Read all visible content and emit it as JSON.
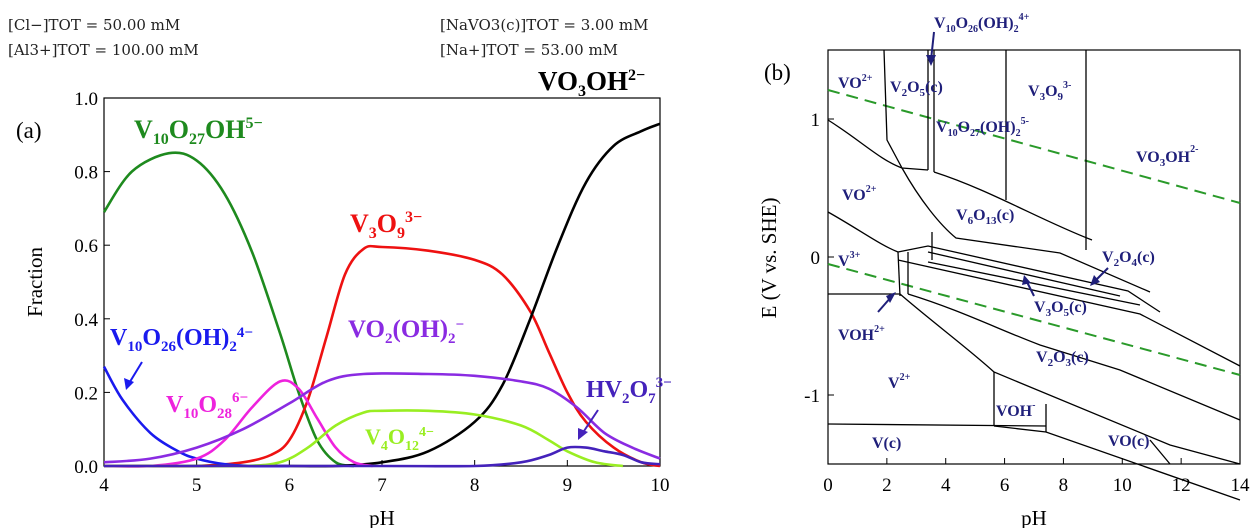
{
  "header": {
    "cl_tot": "[Cl−]TOT =   50.00 mM",
    "al_tot": "[Al3+]TOT =  100.00 mM",
    "navo3_tot": "[NaVO3(c)]TOT =    3.00 mM",
    "na_tot": "[Na+]TOT =   53.00 mM"
  },
  "chart_data": [
    {
      "panel": "(a)",
      "type": "line",
      "xlabel": "pH",
      "ylabel": "Fraction",
      "xlim": [
        4,
        10
      ],
      "ylim": [
        0,
        1.0
      ],
      "x_ticks": [
        "4",
        "5",
        "6",
        "7",
        "8",
        "9",
        "10"
      ],
      "y_ticks": [
        "0.0",
        "0.2",
        "0.4",
        "0.6",
        "0.8",
        "1.0"
      ],
      "series": [
        {
          "name": "V10O27OH5−",
          "color": "#1e8a1e",
          "x": [
            4.0,
            4.3,
            4.7,
            5.0,
            5.3,
            5.6,
            5.9,
            6.1,
            6.3,
            6.5,
            6.7
          ],
          "y": [
            0.69,
            0.8,
            0.85,
            0.83,
            0.74,
            0.58,
            0.36,
            0.2,
            0.07,
            0.01,
            0.0
          ]
        },
        {
          "name": "V3O9 3−",
          "color": "#ee1111",
          "x": [
            4.0,
            4.5,
            5.0,
            5.5,
            5.8,
            6.0,
            6.2,
            6.4,
            6.6,
            6.8,
            7.0,
            7.5,
            8.0,
            8.3,
            8.6,
            8.8,
            9.0,
            9.2,
            9.5,
            9.8,
            10.0
          ],
          "y": [
            0.0,
            0.0,
            0.0,
            0.01,
            0.03,
            0.07,
            0.18,
            0.35,
            0.52,
            0.59,
            0.595,
            0.585,
            0.56,
            0.52,
            0.42,
            0.31,
            0.2,
            0.12,
            0.05,
            0.01,
            0.0
          ]
        },
        {
          "name": "VO3OH2−",
          "color": "#000000",
          "x": [
            4.0,
            5.0,
            6.0,
            6.5,
            7.0,
            7.5,
            8.0,
            8.3,
            8.6,
            8.9,
            9.2,
            9.5,
            9.8,
            10.0
          ],
          "y": [
            0.0,
            0.0,
            0.0,
            0.0,
            0.01,
            0.04,
            0.12,
            0.22,
            0.4,
            0.6,
            0.77,
            0.87,
            0.91,
            0.93
          ]
        },
        {
          "name": "V10O26(OH)2 4−",
          "color": "#1a1aee",
          "x": [
            4.0,
            4.2,
            4.5,
            4.8,
            5.0,
            5.3,
            5.6,
            6.0
          ],
          "y": [
            0.27,
            0.18,
            0.09,
            0.04,
            0.02,
            0.005,
            0.0,
            0.0
          ]
        },
        {
          "name": "V10O28 6−",
          "color": "#ee22dd",
          "x": [
            4.0,
            4.5,
            5.0,
            5.3,
            5.6,
            5.9,
            6.1,
            6.3,
            6.5,
            6.7,
            6.9
          ],
          "y": [
            0.0,
            0.0,
            0.02,
            0.07,
            0.16,
            0.23,
            0.21,
            0.13,
            0.05,
            0.01,
            0.0
          ]
        },
        {
          "name": "VO2(OH)2−",
          "color": "#8a2be2",
          "x": [
            4.0,
            4.5,
            5.0,
            5.5,
            6.0,
            6.4,
            6.8,
            7.5,
            8.0,
            8.5,
            8.8,
            9.1,
            9.4,
            9.7,
            10.0
          ],
          "y": [
            0.01,
            0.02,
            0.05,
            0.1,
            0.17,
            0.23,
            0.25,
            0.25,
            0.245,
            0.23,
            0.21,
            0.16,
            0.09,
            0.05,
            0.02
          ]
        },
        {
          "name": "V4O12 4−",
          "color": "#99ee22",
          "x": [
            4.0,
            5.0,
            5.5,
            5.9,
            6.2,
            6.5,
            6.8,
            7.0,
            7.5,
            8.0,
            8.5,
            8.8,
            9.0,
            9.3,
            9.6
          ],
          "y": [
            0.0,
            0.0,
            0.0,
            0.01,
            0.05,
            0.11,
            0.145,
            0.15,
            0.15,
            0.14,
            0.11,
            0.07,
            0.04,
            0.01,
            0.0
          ]
        },
        {
          "name": "HV2O7 3−",
          "color": "#4422bb",
          "x": [
            4.0,
            7.0,
            8.0,
            8.5,
            8.8,
            9.0,
            9.2,
            9.4,
            9.6,
            9.8,
            10.0
          ],
          "y": [
            0.0,
            0.0,
            0.0,
            0.01,
            0.03,
            0.05,
            0.05,
            0.04,
            0.03,
            0.01,
            0.005
          ]
        }
      ]
    },
    {
      "panel": "(b)",
      "type": "line",
      "xlabel": "pH",
      "ylabel": "E (V vs. SHE)",
      "xlim": [
        0,
        14
      ],
      "ylim": [
        -1.5,
        1.5
      ],
      "x_ticks": [
        "0",
        "2",
        "4",
        "6",
        "8",
        "10",
        "12",
        "14"
      ],
      "y_ticks": [
        "1",
        "0",
        "-1"
      ],
      "region_labels": [
        "VO2+",
        "V2O5(c)",
        "V10O27(OH)2 5-",
        "V3O9 3-",
        "VO3OH2-",
        "VO2+",
        "V6O13(c)",
        "V3+",
        "V2O4(c)",
        "V3O5(c)",
        "VOH2+",
        "V2O3(c)",
        "V2+",
        "VOH-",
        "V(c)",
        "VO(c)"
      ],
      "top_label": "V10O26(OH)2 4+"
    }
  ]
}
